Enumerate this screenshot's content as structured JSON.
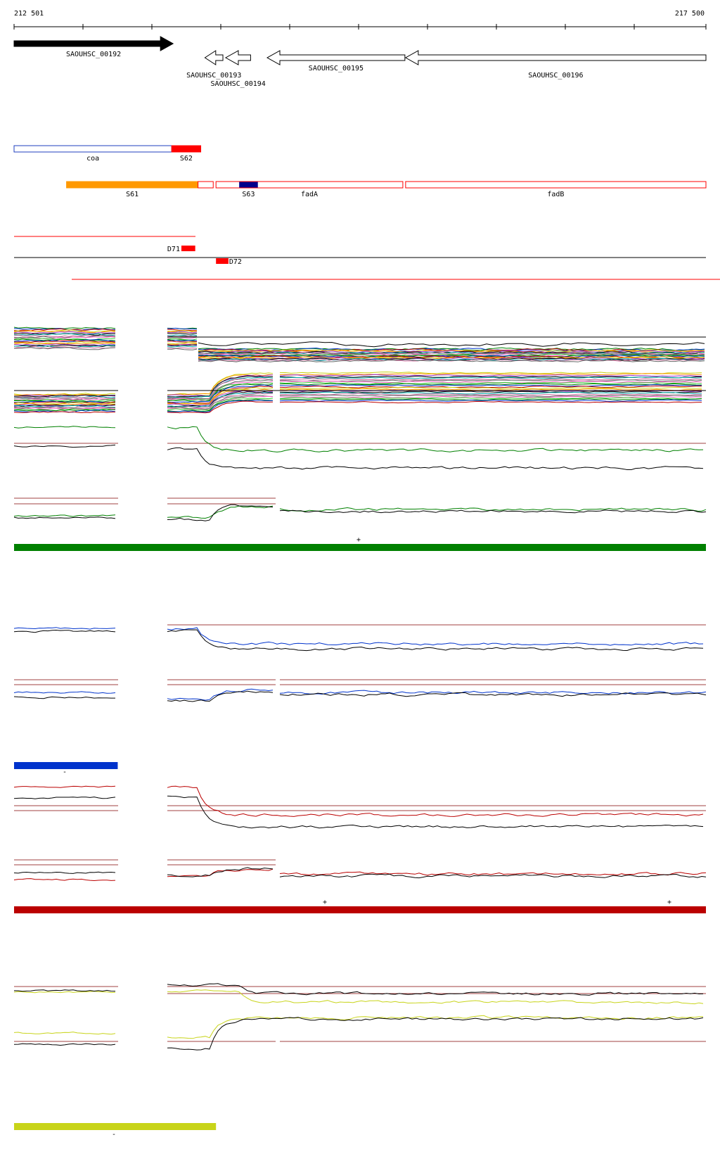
{
  "axis": {
    "start_label": "212 501",
    "end_label": "217 500",
    "start": 212501,
    "end": 217500
  },
  "genes": [
    {
      "name": "SAOUHSC_00192",
      "start": 212501,
      "end": 213650,
      "strand": "+",
      "filled": true
    },
    {
      "name": "SAOUHSC_00193",
      "start": 213880,
      "end": 214010,
      "strand": "-",
      "filled": false
    },
    {
      "name": "SAOUHSC_00194",
      "start": 214030,
      "end": 214210,
      "strand": "-",
      "filled": false
    },
    {
      "name": "SAOUHSC_00195",
      "start": 214330,
      "end": 215325,
      "strand": "-",
      "filled": false
    },
    {
      "name": "SAOUHSC_00196",
      "start": 215330,
      "end": 217500,
      "strand": "-",
      "filled": false
    }
  ],
  "features_row1": [
    {
      "name": "coa",
      "start": 212501,
      "end": 213640,
      "color": "#1f3fbf",
      "filled": false
    },
    {
      "name": "S62",
      "start": 213640,
      "end": 213850,
      "color": "#ff0000",
      "filled": true
    }
  ],
  "features_row2": [
    {
      "name": "S61",
      "start": 212880,
      "end": 213830,
      "color": "#ff9900",
      "filled": true
    },
    {
      "name": "",
      "start": 213830,
      "end": 213940,
      "color": "#ff0000",
      "filled": false
    },
    {
      "name": "S63",
      "start": 214130,
      "end": 214260,
      "color": "#00008b",
      "filled": true
    },
    {
      "name": "fadA",
      "start": 213960,
      "end": 215310,
      "color": "#ff0000",
      "filled": false
    },
    {
      "name": "fadB",
      "start": 215330,
      "end": 217500,
      "color": "#ff0000",
      "filled": false
    }
  ],
  "deletions": [
    {
      "name": "D71",
      "start": 213710,
      "end": 213810,
      "color": "#ff0000"
    },
    {
      "name": "D72",
      "start": 213960,
      "end": 214050,
      "color": "#ff0000"
    }
  ],
  "condition_bars": [
    {
      "color": "#008000",
      "end": 217500,
      "mark": "+"
    },
    {
      "color": "#0033cc",
      "end": 213250,
      "mark": "-"
    },
    {
      "color": "#bb0000",
      "end": 217500,
      "mark": "+"
    },
    {
      "color": "#c8d41a",
      "end": 213960,
      "mark": "-"
    }
  ],
  "series_colors": {
    "green": "#008000",
    "blue": "#0033cc",
    "red": "#bb0000",
    "yellow": "#c8d41a",
    "black": "#000000",
    "threshold": "#a04040"
  }
}
